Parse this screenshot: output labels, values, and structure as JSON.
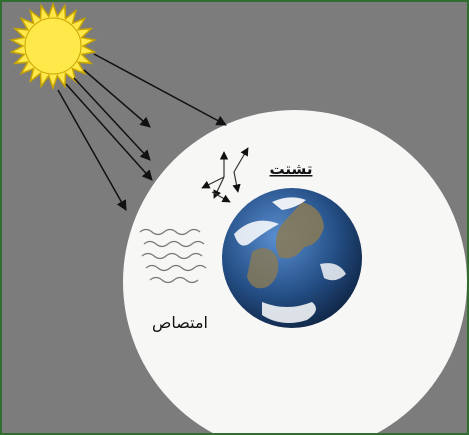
{
  "colors": {
    "frame_border": "#2f6e2f",
    "background": "#7c7c7c",
    "atmosphere": "#f7f7f5",
    "sun_fill": "#ffe84a",
    "sun_stroke": "#c8a400",
    "ray": "#111111",
    "ocean": "#2a5f9e",
    "land": "#8a7a55",
    "clouds": "#ffffff"
  },
  "icons": {
    "sun": "sun-icon",
    "earth": "earth-globe-icon",
    "scatter": "scatter-arrows-icon",
    "absorption": "wavy-lines-icon"
  },
  "labels": {
    "scattering": "تشتت",
    "absorption": "امتصاص"
  }
}
